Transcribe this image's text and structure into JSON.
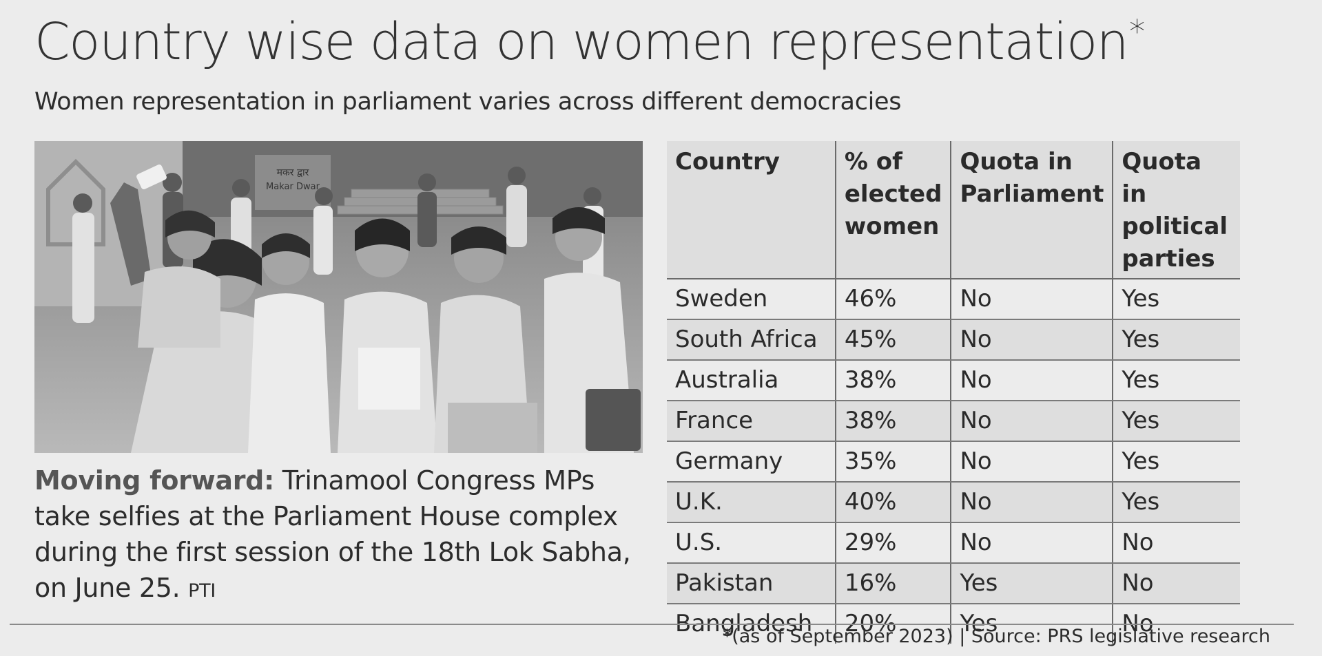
{
  "header": {
    "title": "Country wise data on women representation",
    "title_mark": "*",
    "subtitle": "Women representation in parliament varies across different democracies"
  },
  "photo": {
    "description_icon": "photo-mps-selfie",
    "building_sign_lines": [
      "मकर द्वार",
      "Makar Dwar"
    ]
  },
  "caption": {
    "lead": "Moving forward:",
    "text": " Trinamool Congress MPs take selfies at the Parliament House complex during the first session of the 18th Lok Sabha, on June 25. ",
    "credit": "PTI"
  },
  "table": {
    "headers": [
      [
        "Country"
      ],
      [
        "% of",
        "elected",
        "women"
      ],
      [
        "Quota in",
        "Parliament"
      ],
      [
        "Quota in",
        "political",
        "parties"
      ]
    ],
    "rows": [
      [
        "Sweden",
        "46%",
        "No",
        "Yes"
      ],
      [
        "South Africa",
        "45%",
        "No",
        "Yes"
      ],
      [
        "Australia",
        "38%",
        "No",
        "Yes"
      ],
      [
        "France",
        "38%",
        "No",
        "Yes"
      ],
      [
        "Germany",
        "35%",
        "No",
        "Yes"
      ],
      [
        "U.K.",
        "40%",
        "No",
        "Yes"
      ],
      [
        "U.S.",
        "29%",
        "No",
        "No"
      ],
      [
        "Pakistan",
        "16%",
        "Yes",
        "No"
      ],
      [
        "Bangladesh",
        "20%",
        "Yes",
        "No"
      ]
    ]
  },
  "footer": {
    "source": "*(as of September 2023) | Source: PRS legislative research"
  }
}
